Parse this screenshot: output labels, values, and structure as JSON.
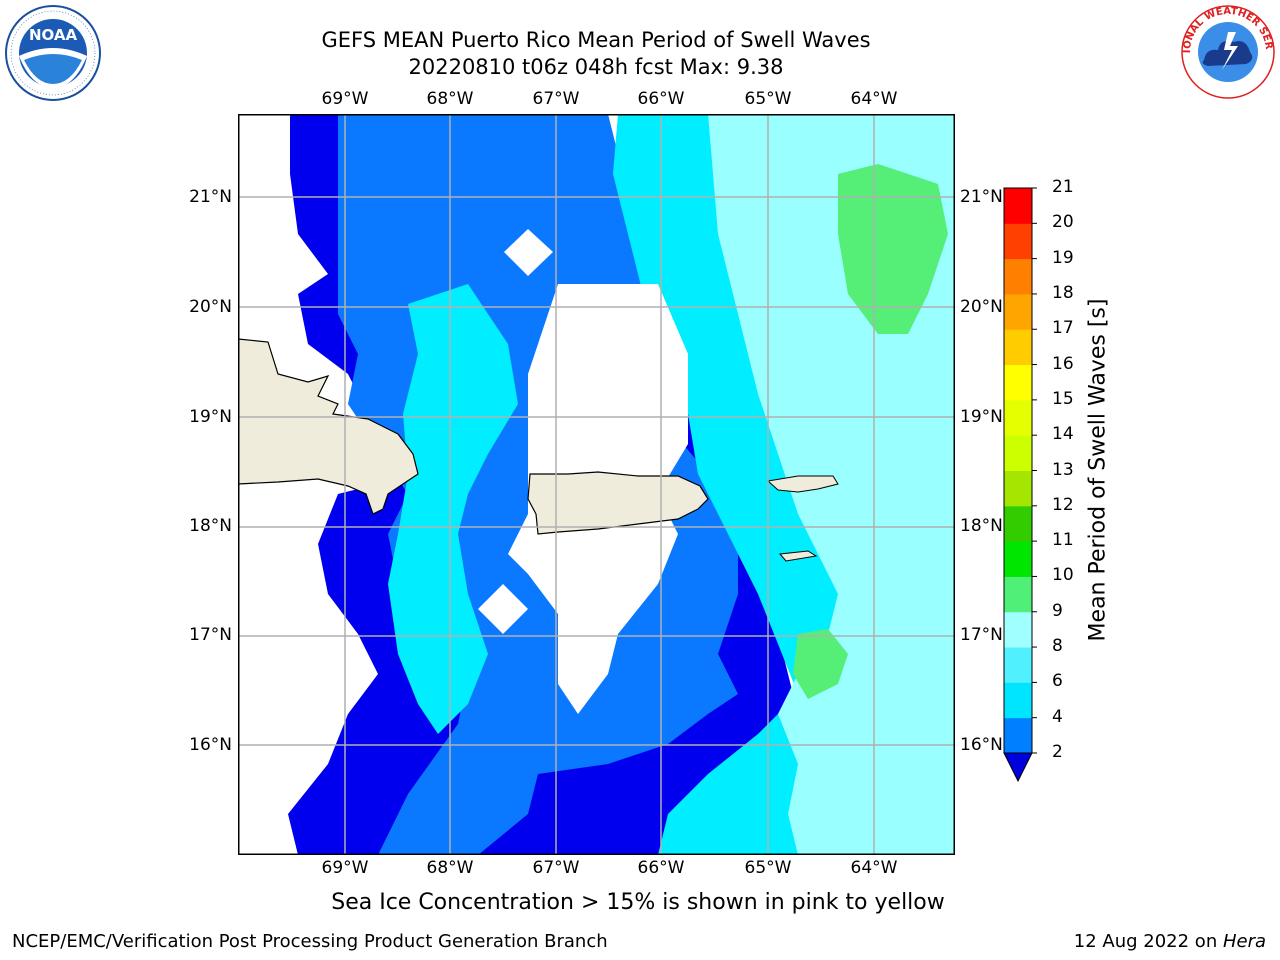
{
  "title": {
    "line1": "GEFS MEAN Puerto Rico Mean Period of Swell Waves",
    "line2": "20220810 t06z 048h fcst   Max: 9.38"
  },
  "logos": {
    "left": {
      "icon": "noaa-logo-icon",
      "text": "NOAA"
    },
    "right": {
      "icon": "nws-logo-icon",
      "text": "NATIONAL WEATHER SERVICE"
    }
  },
  "map": {
    "lon_labels": [
      "69°W",
      "68°W",
      "67°W",
      "66°W",
      "65°W",
      "64°W"
    ],
    "lat_labels": [
      "21°N",
      "20°N",
      "19°N",
      "18°N",
      "17°N",
      "16°N"
    ],
    "land_color": "#efecdc",
    "grid_color": "#b0b0b0"
  },
  "colorbar": {
    "title": "Mean Period of Swell Waves [s]",
    "ticks": [
      "2",
      "4",
      "6",
      "8",
      "9",
      "10",
      "11",
      "12",
      "13",
      "14",
      "15",
      "16",
      "17",
      "18",
      "19",
      "20",
      "21"
    ],
    "colors": [
      "#0000ff",
      "#0080ff",
      "#00e5ff",
      "#50f0ff",
      "#a0ffff",
      "#50ef78",
      "#00e600",
      "#33cc00",
      "#a5e600",
      "#ccff00",
      "#e6ff00",
      "#ffff00",
      "#ffcc00",
      "#ffa500",
      "#ff8000",
      "#ff4000",
      "#ff0000"
    ],
    "under_color": "#0000dd"
  },
  "note": "Sea Ice Concentration > 15% is shown in pink to yellow",
  "footer": {
    "left": "NCEP/EMC/Verification Post Processing Product Generation Branch",
    "right_prefix": "12 Aug 2022 on ",
    "right_host": "Hera"
  }
}
